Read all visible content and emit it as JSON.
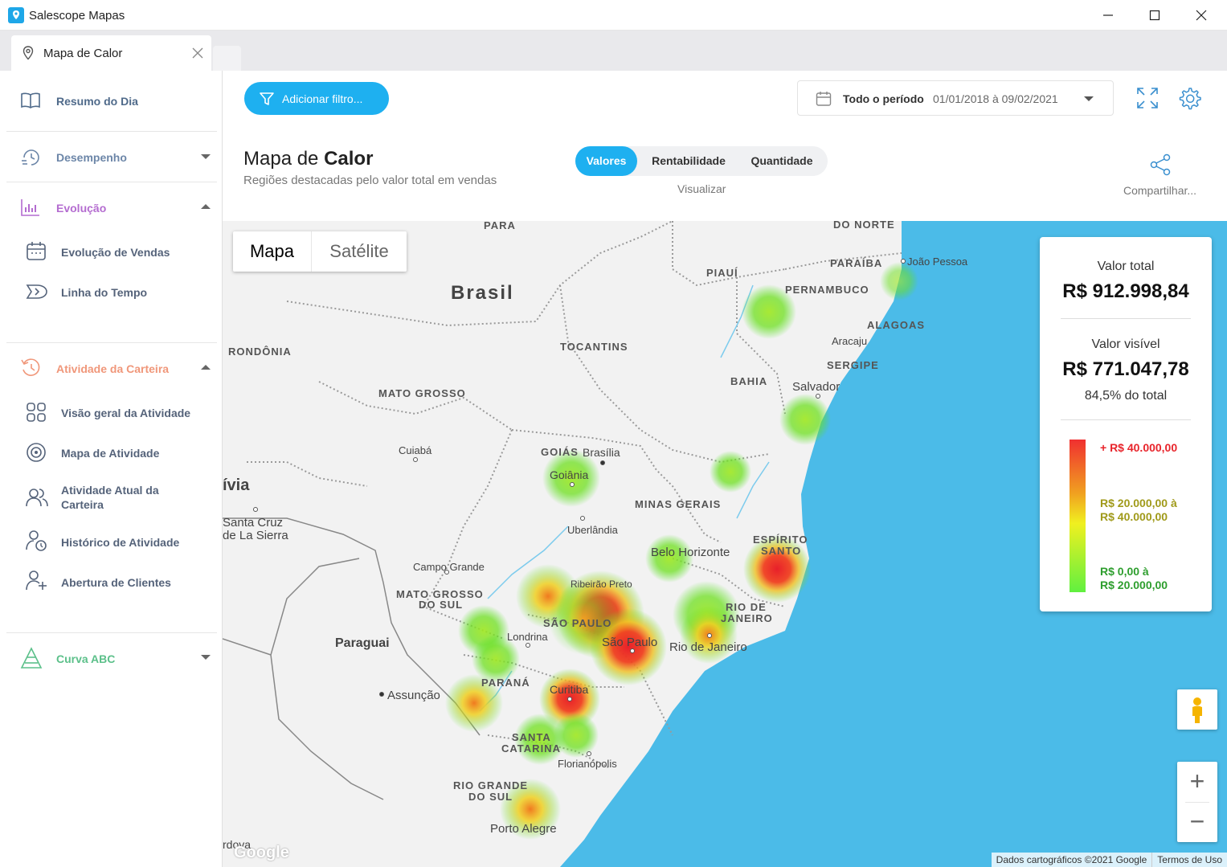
{
  "window": {
    "title": "Salescope Mapas",
    "minimize": "—",
    "maximize": "☐",
    "close": "✕"
  },
  "tab": {
    "label": "Mapa de Calor"
  },
  "sidebar": {
    "resumo": "Resumo do Dia",
    "desempenho": "Desempenho",
    "evolucao": "Evolução",
    "evolucao_vendas": "Evolução de Vendas",
    "linha_tempo": "Linha do Tempo",
    "atividade": "Atividade da Carteira",
    "visao_geral": "Visão geral da Atividade",
    "mapa_atividade": "Mapa de Atividade",
    "atividade_atual_1": "Atividade Atual da",
    "atividade_atual_2": "Carteira",
    "historico": "Histórico de Atividade",
    "abertura": "Abertura de Clientes",
    "curva_abc": "Curva ABC"
  },
  "header": {
    "filter_button": "Adicionar filtro...",
    "period_label": "Todo o período",
    "period_range": "01/01/2018 à 09/02/2021",
    "title_light": "Mapa de ",
    "title_bold": "Calor",
    "subtitle": "Regiões destacadas pelo valor total em vendas",
    "segments": [
      "Valores",
      "Rentabilidade",
      "Quantidade"
    ],
    "visualizar": "Visualizar",
    "share": "Compartilhar..."
  },
  "map": {
    "type_buttons": [
      "Mapa",
      "Satélite"
    ],
    "labels_bold": [
      "PARA",
      "DO NORTE",
      "PARAÍBA",
      "PIAUÍ",
      "PERNAMBUCO",
      "ALAGOAS",
      "TOCANTINS",
      "SERGIPE",
      "RONDÔNIA",
      "BAHIA",
      "MATO GROSSO",
      "GOIÁS",
      "MINAS GERAIS",
      "ESPÍRITO",
      "SANTO",
      "MATO GROSSO",
      "DO SUL",
      "SÃO PAULO",
      "RIO DE",
      "JANEIRO",
      "PARANÁ",
      "SANTA",
      "CATARINA",
      "RIO GRANDE",
      "DO SUL"
    ],
    "labels_city": [
      "João Pessoa",
      "Aracaju",
      "Salvador",
      "Cuiabá",
      "Brasília",
      "Goiânia",
      "Uberlândia",
      "Belo Horizonte",
      "Campo Grande",
      "Ribeirão Preto",
      "Londrina",
      "São Paulo",
      "Rio de Janeiro",
      "Curitiba",
      "Florianópolis",
      "Porto Alegre",
      "Assunção",
      "Santa Cruz",
      "de La Sierra",
      "Paraguai",
      "Brasil",
      "ívia",
      "rdova"
    ],
    "google": "Google",
    "attribution": "Dados cartográficos ©2021 Google",
    "terms": "Termos de Uso",
    "zoom_in": "+",
    "zoom_out": "−"
  },
  "legend": {
    "total_label": "Valor total",
    "total_value": "R$ 912.998,84",
    "visible_label": "Valor visível",
    "visible_value": "R$ 771.047,78",
    "visible_pct": "84,5% do total",
    "high": "+ R$ 40.000,00",
    "mid_1": "R$ 20.000,00 à",
    "mid_2": "R$ 40.000,00",
    "low_1": "R$ 0,00 à",
    "low_2": "R$ 20.000,00",
    "colors": {
      "high": "#e8242b",
      "mid": "#a09a1a",
      "low": "#2e9e2e"
    }
  },
  "colors": {
    "accent": "#1eb0f0",
    "ocean": "#4bbbe8"
  }
}
